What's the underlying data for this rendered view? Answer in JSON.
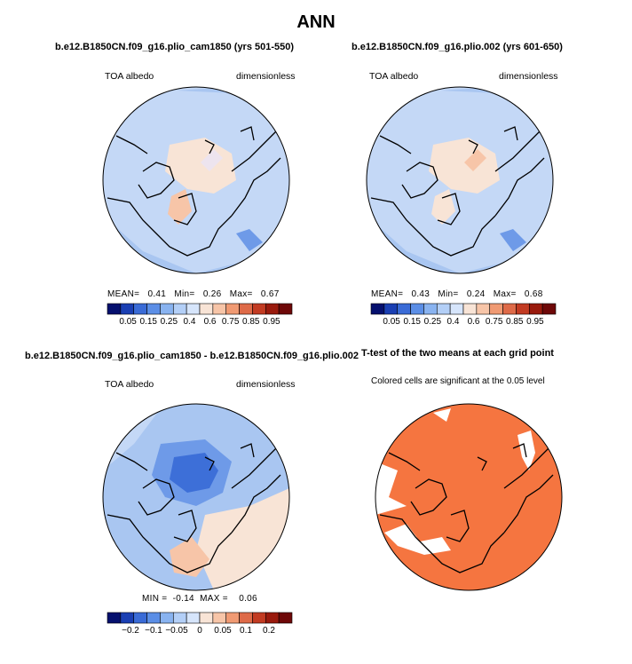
{
  "title": "ANN",
  "panels": [
    {
      "id": "case1",
      "title": "b.e12.B1850CN.f09_g16.plio_cam1850 (yrs 501-550)",
      "left_label": "TOA albedo",
      "right_label": "dimensionless",
      "stats": {
        "mean_label": "MEAN=",
        "mean": "0.41",
        "min_label": "Min=",
        "min": "0.26",
        "max_label": "Max=",
        "max": "0.67"
      }
    },
    {
      "id": "case2",
      "title": "b.e12.B1850CN.f09_g16.plio.002 (yrs 601-650)",
      "left_label": "TOA albedo",
      "right_label": "dimensionless",
      "stats": {
        "mean_label": "MEAN=",
        "mean": "0.43",
        "min_label": "Min=",
        "min": "0.24",
        "max_label": "Max=",
        "max": "0.68"
      }
    },
    {
      "id": "diff",
      "title": "b.e12.B1850CN.f09_g16.plio_cam1850 - b.e12.B1850CN.f09_g16.plio.002",
      "left_label": "TOA albedo",
      "right_label": "dimensionless",
      "stats": {
        "min_label": "MIN =",
        "min": "-0.14",
        "max_label": "MAX =",
        "max": "0.06"
      }
    },
    {
      "id": "ttest",
      "title": "T-test of the two means at each grid point",
      "subtitle": "Colored cells are significant at the 0.05 level"
    }
  ],
  "colorbar_abs": {
    "labels": [
      "0.05",
      "0.15",
      "0.25",
      "0.4",
      "0.6",
      "0.75",
      "0.85",
      "0.95"
    ],
    "colors": [
      "#05106e",
      "#1a3fb3",
      "#3a6bd6",
      "#5b8ee6",
      "#89b3f0",
      "#b3cff7",
      "#d6e5fb",
      "#f8e4d6",
      "#f7c5a8",
      "#f09a73",
      "#de6a48",
      "#c23b22",
      "#991a0d",
      "#6e0808"
    ]
  },
  "colorbar_diff": {
    "labels": [
      "-0.2",
      "-0.1",
      "-0.05",
      "0",
      "0.05",
      "0.1",
      "0.2"
    ],
    "colors": [
      "#05106e",
      "#1a3fb3",
      "#3a6bd6",
      "#5b8ee6",
      "#89b3f0",
      "#b3cff7",
      "#d6e5fb",
      "#f8e4d6",
      "#f7c5a8",
      "#f09a73",
      "#de6a48",
      "#c23b22",
      "#991a0d",
      "#6e0808"
    ]
  },
  "map_colors": {
    "blue_light": "#c4d8f6",
    "blue_mid": "#a9c6f1",
    "blue_dark": "#6e9ae8",
    "blue_deep": "#3d6fd8",
    "peach": "#f8e4d6",
    "peach_dark": "#f7c5a8",
    "ttest_fill": "#f57540"
  },
  "chart_data": [
    {
      "type": "heatmap",
      "title": "b.e12.B1850CN.f09_g16.plio_cam1850 (yrs 501-550)",
      "variable": "TOA albedo",
      "units": "dimensionless",
      "projection": "north polar stereographic",
      "mean": 0.41,
      "min": 0.26,
      "max": 0.67,
      "contour_levels": [
        0.05,
        0.15,
        0.25,
        0.4,
        0.6,
        0.75,
        0.85,
        0.95
      ]
    },
    {
      "type": "heatmap",
      "title": "b.e12.B1850CN.f09_g16.plio.002 (yrs 601-650)",
      "variable": "TOA albedo",
      "units": "dimensionless",
      "projection": "north polar stereographic",
      "mean": 0.43,
      "min": 0.24,
      "max": 0.68,
      "contour_levels": [
        0.05,
        0.15,
        0.25,
        0.4,
        0.6,
        0.75,
        0.85,
        0.95
      ]
    },
    {
      "type": "heatmap",
      "title": "b.e12.B1850CN.f09_g16.plio_cam1850 - b.e12.B1850CN.f09_g16.plio.002",
      "variable": "TOA albedo",
      "units": "dimensionless",
      "projection": "north polar stereographic",
      "min": -0.14,
      "max": 0.06,
      "contour_levels": [
        -0.2,
        -0.1,
        -0.05,
        0,
        0.05,
        0.1,
        0.2
      ]
    },
    {
      "type": "heatmap",
      "title": "T-test of the two means at each grid point",
      "subtitle": "Colored cells are significant at the 0.05 level",
      "projection": "north polar stereographic",
      "significance_level": 0.05
    }
  ]
}
